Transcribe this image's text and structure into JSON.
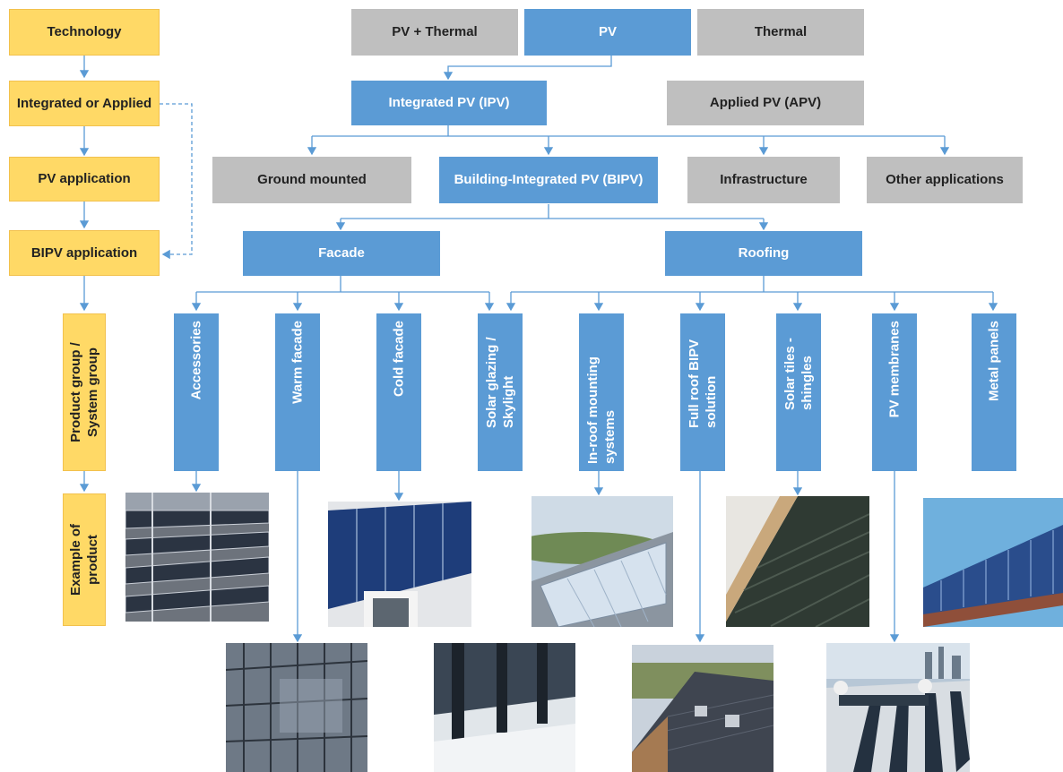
{
  "legend": {
    "technology": "Technology",
    "integrated_or_applied": "Integrated or Applied",
    "pv_application": "PV application",
    "bipv_application": "BIPV application",
    "product_group": "Product group / System group",
    "example": "Example of product"
  },
  "level1": {
    "pv_thermal": "PV + Thermal",
    "pv": "PV",
    "thermal": "Thermal"
  },
  "level2": {
    "ipv": "Integrated PV (IPV)",
    "apv": "Applied PV (APV)"
  },
  "level3": {
    "ground": "Ground mounted",
    "bipv": "Building-Integrated PV (BIPV)",
    "infrastructure": "Infrastructure",
    "other": "Other applications"
  },
  "level4": {
    "facade": "Facade",
    "roofing": "Roofing"
  },
  "products": {
    "accessories": "Accessories",
    "warm_facade": "Warm facade",
    "cold_facade": "Cold facade",
    "solar_glazing": "Solar glazing / Skylight",
    "inroof": "In-roof mounting systems",
    "full_roof": "Full roof BIPV solution",
    "solar_tiles": "Solar tiles - shingles",
    "pv_membranes": "PV membranes",
    "metal_panels": "Metal panels"
  },
  "colors": {
    "blue": "#5b9bd5",
    "gray": "#bfbfbf",
    "yellow": "#ffd966",
    "line": "#5b9bd5"
  }
}
